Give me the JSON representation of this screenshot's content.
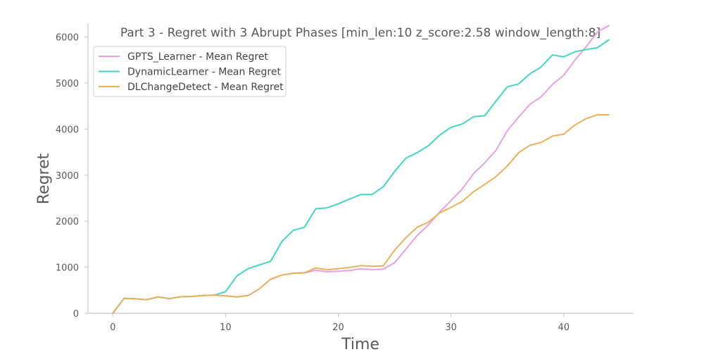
{
  "chart_data": {
    "type": "line",
    "title": "Part 3 - Regret with 3 Abrupt Phases [min_len:10 z_score:2.58 window_length:8]",
    "xlabel": "Time",
    "ylabel": "Regret",
    "xlim": [
      -2.2,
      46.2
    ],
    "ylim": [
      0,
      6300
    ],
    "xticks": [
      0,
      10,
      20,
      30,
      40
    ],
    "yticks": [
      0,
      1000,
      2000,
      3000,
      4000,
      5000,
      6000
    ],
    "grid": false,
    "legend_position": "top-left",
    "x": [
      0,
      1,
      2,
      3,
      4,
      5,
      6,
      7,
      8,
      9,
      10,
      11,
      12,
      13,
      14,
      15,
      16,
      17,
      18,
      19,
      20,
      21,
      22,
      23,
      24,
      25,
      26,
      27,
      28,
      29,
      30,
      31,
      32,
      33,
      34,
      35,
      36,
      37,
      38,
      39,
      40,
      41,
      42,
      43,
      44
    ],
    "series": [
      {
        "name": "GPTS_Learner - Mean Regret",
        "color": "#ee9ee3",
        "values": [
          0,
          325,
          315,
          295,
          355,
          320,
          360,
          365,
          385,
          395,
          380,
          355,
          385,
          530,
          740,
          830,
          870,
          880,
          935,
          900,
          915,
          930,
          965,
          950,
          960,
          1100,
          1390,
          1690,
          1920,
          2200,
          2450,
          2700,
          3030,
          3270,
          3540,
          3970,
          4260,
          4540,
          4700,
          4970,
          5170,
          5500,
          5790,
          6110,
          6250
        ]
      },
      {
        "name": "DynamicLearner - Mean Regret",
        "color": "#3fd8c6",
        "values": [
          0,
          325,
          315,
          295,
          355,
          320,
          360,
          365,
          385,
          395,
          470,
          810,
          970,
          1050,
          1130,
          1560,
          1800,
          1870,
          2270,
          2290,
          2380,
          2480,
          2580,
          2580,
          2750,
          3080,
          3370,
          3490,
          3640,
          3870,
          4040,
          4110,
          4270,
          4290,
          4610,
          4920,
          4980,
          5200,
          5350,
          5610,
          5570,
          5680,
          5730,
          5770,
          5940
        ]
      },
      {
        "name": "DLChangeDetect - Mean Regret",
        "color": "#eeb057",
        "values": [
          0,
          325,
          315,
          295,
          355,
          320,
          360,
          365,
          385,
          395,
          380,
          355,
          385,
          530,
          740,
          830,
          870,
          880,
          985,
          945,
          970,
          995,
          1035,
          1020,
          1030,
          1370,
          1640,
          1870,
          1980,
          2180,
          2300,
          2430,
          2640,
          2800,
          2970,
          3200,
          3490,
          3650,
          3710,
          3850,
          3890,
          4090,
          4230,
          4310,
          4310
        ]
      }
    ]
  }
}
